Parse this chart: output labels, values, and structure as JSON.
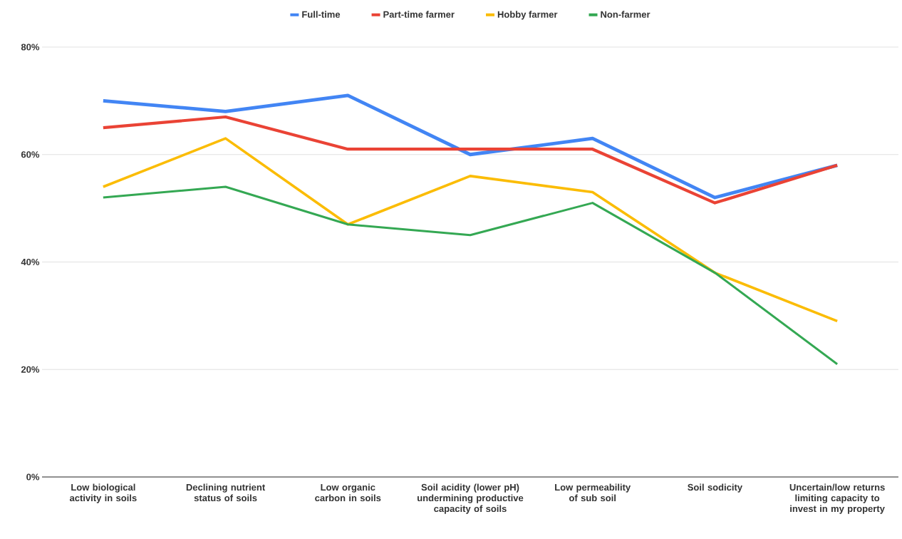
{
  "chart_data": {
    "type": "line",
    "categories": [
      "Low biological activity in soils",
      "Declining nutrient status of soils",
      "Low organic carbon in soils",
      "Soil acidity (lower pH) undermining productive capacity of soils",
      "Low permeability of sub soil",
      "Soil sodicity",
      "Uncertain/low returns limiting capacity to invest in my property"
    ],
    "series": [
      {
        "name": "Full-time",
        "color": "#4285f4",
        "values": [
          70,
          68,
          71,
          60,
          63,
          52,
          58
        ]
      },
      {
        "name": "Part-time farmer",
        "color": "#ea4335",
        "values": [
          65,
          67,
          61,
          61,
          61,
          51,
          58
        ]
      },
      {
        "name": "Hobby farmer",
        "color": "#fbbc04",
        "values": [
          54,
          63,
          47,
          56,
          53,
          38,
          29
        ]
      },
      {
        "name": "Non-farmer",
        "color": "#34a853",
        "values": [
          52,
          54,
          47,
          45,
          51,
          38,
          21
        ]
      }
    ],
    "ylim": [
      0,
      80
    ],
    "yticks": [
      {
        "value": 0,
        "label": "0%"
      },
      {
        "value": 20,
        "label": "20%"
      },
      {
        "value": 40,
        "label": "40%"
      },
      {
        "value": 60,
        "label": "60%"
      },
      {
        "value": 80,
        "label": "80%"
      }
    ],
    "grid": "y",
    "legend": "top"
  }
}
